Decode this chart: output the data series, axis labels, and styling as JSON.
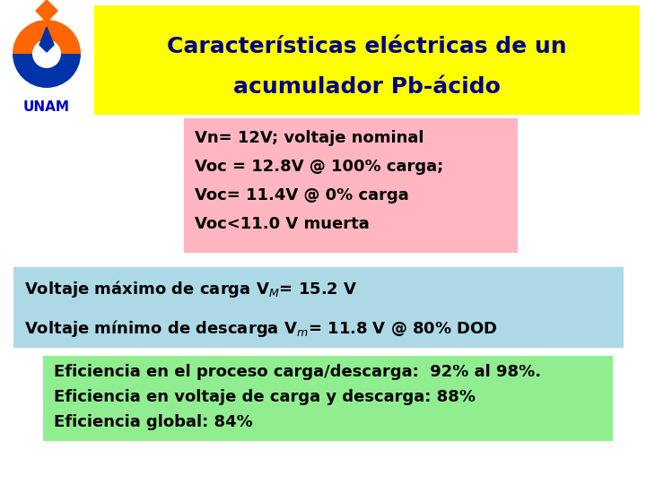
{
  "title_line1": "Características eléctricas de un",
  "title_line2": "acumulador Pb-ácido",
  "title_bg": "#FFFF00",
  "title_color": "#000080",
  "title_fontsize": 18,
  "box1_bg": "#FFB6C1",
  "box1_lines": [
    "Vn= 12V; voltaje nominal",
    "Voc = 12.8V @ 100% carga;",
    "Voc= 11.4V @ 0% carga",
    "Voc<11.0 V muerta"
  ],
  "box2_bg": "#ADD8E6",
  "box2_line1": "Voltaje máximo de carga V",
  "box2_line1_sub": "M",
  "box2_line1_end": "= 15.2 V",
  "box2_line2": "Voltaje mínimo de descarga V",
  "box2_line2_sub": "m",
  "box2_line2_end": "= 11.8 V @ 80% DOD",
  "box3_bg": "#90EE90",
  "box3_lines": [
    "Eficiencia en el proceso carga/descarga:  92% al 98%.",
    "Eficiencia en voltaje de carga y descarga: 88%",
    "Eficiencia global: 84%"
  ],
  "text_fontsize": 13,
  "text_color": "#000000",
  "unam_color": "#0000CC",
  "unam_text": "UNAM",
  "fig_bg": "#FFFFFF",
  "fig_w": 7.2,
  "fig_h": 5.4,
  "dpi": 100
}
